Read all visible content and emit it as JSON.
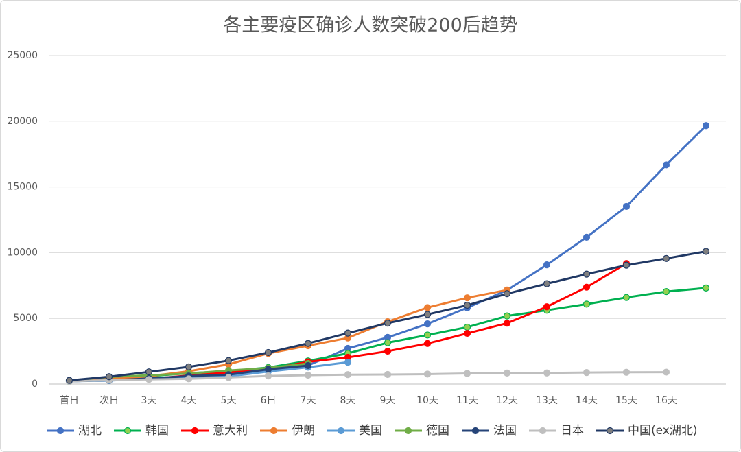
{
  "chart_data": {
    "type": "line",
    "title": "各主要疫区确诊人数突破200后趋势",
    "categories": [
      "首日",
      "次日",
      "3天",
      "4天",
      "5天",
      "6日",
      "7天",
      "8天",
      "9天",
      "10天",
      "11天",
      "12天",
      "13天",
      "14天",
      "15天",
      "16天",
      null
    ],
    "ylim": [
      0,
      25000
    ],
    "yticks": [
      0,
      5000,
      10000,
      15000,
      20000,
      25000
    ],
    "grid": true,
    "legend": "bottom",
    "series": [
      {
        "name": "湖北",
        "color": "#4472c4",
        "marker_color": "#4472c4",
        "values": [
          270,
          375,
          444,
          549,
          729,
          1052,
          1423,
          2714,
          3554,
          4586,
          5806,
          7153,
          9074,
          11177,
          13522,
          16678,
          19665
        ]
      },
      {
        "name": "韩国",
        "color": "#00b050",
        "marker_color": "#92d050",
        "values": [
          204,
          433,
          602,
          833,
          977,
          1261,
          1766,
          2337,
          3150,
          3736,
          4335,
          5186,
          5621,
          6088,
          6593,
          7041,
          7314
        ]
      },
      {
        "name": "意大利",
        "color": "#ff0000",
        "marker_color": "#ff0000",
        "values": [
          229,
          322,
          400,
          650,
          888,
          1128,
          1694,
          2036,
          2502,
          3089,
          3858,
          4636,
          5883,
          7375,
          9172,
          null,
          null
        ]
      },
      {
        "name": "伊朗",
        "color": "#ed7d31",
        "marker_color": "#ed7d31",
        "values": [
          245,
          388,
          593,
          978,
          1501,
          2336,
          2922,
          3513,
          4747,
          5823,
          6566,
          7161,
          null,
          null,
          null,
          null,
          null
        ]
      },
      {
        "name": "美国",
        "color": "#5b9bd5",
        "marker_color": "#5b9bd5",
        "values": [
          217,
          262,
          402,
          518,
          583,
          959,
          1281,
          1663,
          null,
          null,
          null,
          null,
          null,
          null,
          null,
          null,
          null
        ]
      },
      {
        "name": "德国",
        "color": "#70ad47",
        "marker_color": "#70ad47",
        "values": [
          262,
          545,
          670,
          800,
          1040,
          1224,
          1565,
          null,
          null,
          null,
          null,
          null,
          null,
          null,
          null,
          null,
          null
        ]
      },
      {
        "name": "法国",
        "color": "#264478",
        "marker_color": "#264478",
        "values": [
          212,
          285,
          423,
          613,
          716,
          1126,
          1412,
          null,
          null,
          null,
          null,
          null,
          null,
          null,
          null,
          null,
          null
        ]
      },
      {
        "name": "日本",
        "color": "#bfbfbf",
        "marker_color": "#bfbfbf",
        "values": [
          200,
          300,
          350,
          400,
          500,
          620,
          680,
          720,
          730,
          760,
          810,
          840,
          850,
          880,
          900,
          910,
          null
        ]
      },
      {
        "name": "中国(ex湖北)",
        "color": "#203864",
        "marker_color": "#7f7f7f",
        "values": [
          280,
          560,
          930,
          1310,
          1790,
          2400,
          3100,
          3880,
          4640,
          5300,
          6000,
          6880,
          7640,
          8370,
          9050,
          9560,
          10100
        ]
      }
    ]
  }
}
